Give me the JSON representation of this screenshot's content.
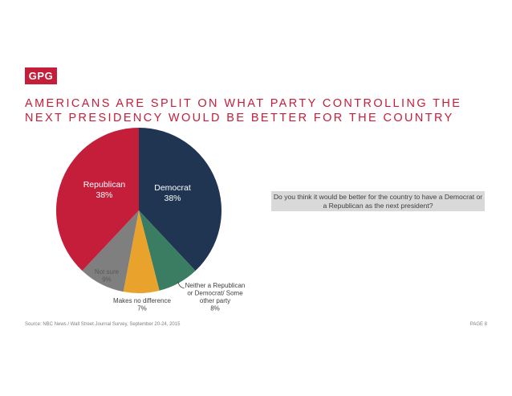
{
  "logo": {
    "text": "GPG"
  },
  "title": {
    "line1": "AMERICANS ARE SPLIT ON WHAT PARTY CONTROLLING THE",
    "line2": "NEXT PRESIDENCY WOULD BE BETTER FOR THE COUNTRY"
  },
  "question": "Do you think it would be better for the country to have a Democrat or a Republican as the next president?",
  "footer": {
    "source": "Source: NBC News / Wall Street Journal Survey, September 20-24, 2015",
    "page": "PAGE 8"
  },
  "colors": {
    "brand": "#c41e3a",
    "democrat": "#1f3552",
    "republican": "#c41e3a",
    "neither": "#3a7d62",
    "no_difference": "#e9a22b",
    "not_sure": "#7f7f7f"
  },
  "chart_data": {
    "type": "pie",
    "start_angle_deg": 0,
    "direction": "clockwise",
    "slices": [
      {
        "key": "democrat",
        "label": [
          "Democrat",
          "38%"
        ],
        "value": 38,
        "color": "#1f3552",
        "label_color": "#ffffff",
        "label_inside": true
      },
      {
        "key": "neither",
        "label": [
          "Neither a Republican",
          "or Democrat/ Some",
          "other party",
          "8%"
        ],
        "value": 8,
        "color": "#3a7d62",
        "label_color": "#404040",
        "label_inside": false
      },
      {
        "key": "no_difference",
        "label": [
          "Makes no difference",
          "7%"
        ],
        "value": 7,
        "color": "#e9a22b",
        "label_color": "#404040",
        "label_inside": false
      },
      {
        "key": "not_sure",
        "label": [
          "Not sure",
          "9%"
        ],
        "value": 9,
        "color": "#7f7f7f",
        "label_color": "#595959",
        "label_inside": true
      },
      {
        "key": "republican",
        "label": [
          "Republican",
          "38%"
        ],
        "value": 38,
        "color": "#c41e3a",
        "label_color": "#ffffff",
        "label_inside": true
      }
    ]
  }
}
